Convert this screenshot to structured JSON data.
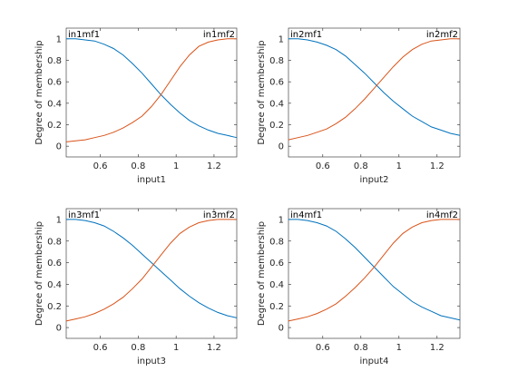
{
  "chart_data": [
    {
      "type": "line",
      "xlabel": "input1",
      "ylabel": "Degree of membership",
      "xlim": [
        0.42,
        1.32
      ],
      "ylim": [
        -0.1,
        1.1
      ],
      "xticks": [
        "0.6",
        "0.8",
        "1",
        "1.2"
      ],
      "yticks": [
        "0",
        "0.2",
        "0.4",
        "0.6",
        "0.8",
        "1"
      ],
      "grid": false,
      "series": [
        {
          "name": "in1mf1",
          "color": "#0072BD",
          "x": [
            0.42,
            0.47,
            0.52,
            0.57,
            0.62,
            0.67,
            0.72,
            0.77,
            0.82,
            0.87,
            0.92,
            0.97,
            1.02,
            1.07,
            1.12,
            1.17,
            1.22,
            1.27,
            1.32
          ],
          "y": [
            1.0,
            1.0,
            0.99,
            0.98,
            0.95,
            0.91,
            0.85,
            0.77,
            0.68,
            0.58,
            0.48,
            0.39,
            0.31,
            0.24,
            0.19,
            0.15,
            0.12,
            0.1,
            0.08
          ]
        },
        {
          "name": "in1mf2",
          "color": "#D95319",
          "x": [
            0.42,
            0.47,
            0.52,
            0.57,
            0.62,
            0.67,
            0.72,
            0.77,
            0.82,
            0.87,
            0.92,
            0.97,
            1.02,
            1.07,
            1.12,
            1.17,
            1.22,
            1.27,
            1.32
          ],
          "y": [
            0.04,
            0.05,
            0.06,
            0.08,
            0.1,
            0.13,
            0.17,
            0.22,
            0.28,
            0.37,
            0.48,
            0.61,
            0.74,
            0.85,
            0.93,
            0.97,
            0.99,
            1.0,
            1.0
          ]
        }
      ]
    },
    {
      "type": "line",
      "xlabel": "input2",
      "ylabel": "Degree of membership",
      "xlim": [
        0.42,
        1.32
      ],
      "ylim": [
        -0.1,
        1.1
      ],
      "xticks": [
        "0.6",
        "0.8",
        "1",
        "1.2"
      ],
      "yticks": [
        "0",
        "0.2",
        "0.4",
        "0.6",
        "0.8",
        "1"
      ],
      "grid": false,
      "series": [
        {
          "name": "in2mf1",
          "color": "#0072BD",
          "x": [
            0.42,
            0.47,
            0.52,
            0.57,
            0.62,
            0.67,
            0.72,
            0.77,
            0.82,
            0.87,
            0.92,
            0.97,
            1.02,
            1.07,
            1.12,
            1.17,
            1.22,
            1.27,
            1.32
          ],
          "y": [
            1.0,
            1.0,
            0.99,
            0.97,
            0.94,
            0.9,
            0.84,
            0.76,
            0.68,
            0.59,
            0.5,
            0.42,
            0.35,
            0.28,
            0.23,
            0.18,
            0.15,
            0.12,
            0.1
          ]
        },
        {
          "name": "in2mf2",
          "color": "#D95319",
          "x": [
            0.42,
            0.47,
            0.52,
            0.57,
            0.62,
            0.67,
            0.72,
            0.77,
            0.82,
            0.87,
            0.92,
            0.97,
            1.02,
            1.07,
            1.12,
            1.17,
            1.22,
            1.27,
            1.32
          ],
          "y": [
            0.06,
            0.08,
            0.1,
            0.13,
            0.16,
            0.21,
            0.27,
            0.35,
            0.44,
            0.54,
            0.64,
            0.74,
            0.83,
            0.9,
            0.95,
            0.98,
            0.99,
            1.0,
            1.0
          ]
        }
      ]
    },
    {
      "type": "line",
      "xlabel": "input3",
      "ylabel": "Degree of membership",
      "xlim": [
        0.42,
        1.32
      ],
      "ylim": [
        -0.1,
        1.1
      ],
      "xticks": [
        "0.6",
        "0.8",
        "1",
        "1.2"
      ],
      "yticks": [
        "0",
        "0.2",
        "0.4",
        "0.6",
        "0.8",
        "1"
      ],
      "grid": false,
      "series": [
        {
          "name": "in3mf1",
          "color": "#0072BD",
          "x": [
            0.42,
            0.47,
            0.52,
            0.57,
            0.62,
            0.67,
            0.72,
            0.77,
            0.82,
            0.87,
            0.92,
            0.97,
            1.02,
            1.07,
            1.12,
            1.17,
            1.22,
            1.27,
            1.32
          ],
          "y": [
            1.0,
            1.0,
            0.99,
            0.97,
            0.94,
            0.89,
            0.83,
            0.76,
            0.68,
            0.6,
            0.52,
            0.44,
            0.36,
            0.29,
            0.23,
            0.18,
            0.14,
            0.11,
            0.09
          ]
        },
        {
          "name": "in3mf2",
          "color": "#D95319",
          "x": [
            0.42,
            0.47,
            0.52,
            0.57,
            0.62,
            0.67,
            0.72,
            0.77,
            0.82,
            0.87,
            0.92,
            0.97,
            1.02,
            1.07,
            1.12,
            1.17,
            1.22,
            1.27,
            1.32
          ],
          "y": [
            0.06,
            0.08,
            0.1,
            0.13,
            0.17,
            0.22,
            0.28,
            0.36,
            0.45,
            0.56,
            0.67,
            0.78,
            0.87,
            0.93,
            0.97,
            0.99,
            1.0,
            1.0,
            1.0
          ]
        }
      ]
    },
    {
      "type": "line",
      "xlabel": "input4",
      "ylabel": "Degree of membership",
      "xlim": [
        0.42,
        1.32
      ],
      "ylim": [
        -0.1,
        1.1
      ],
      "xticks": [
        "0.6",
        "0.8",
        "1",
        "1.2"
      ],
      "yticks": [
        "0",
        "0.2",
        "0.4",
        "0.6",
        "0.8",
        "1"
      ],
      "grid": false,
      "series": [
        {
          "name": "in4mf1",
          "color": "#0072BD",
          "x": [
            0.42,
            0.47,
            0.52,
            0.57,
            0.62,
            0.67,
            0.72,
            0.77,
            0.82,
            0.87,
            0.92,
            0.97,
            1.02,
            1.07,
            1.12,
            1.17,
            1.22,
            1.27,
            1.32
          ],
          "y": [
            1.0,
            1.0,
            0.99,
            0.97,
            0.94,
            0.89,
            0.82,
            0.74,
            0.65,
            0.56,
            0.47,
            0.38,
            0.31,
            0.24,
            0.19,
            0.15,
            0.11,
            0.09,
            0.07
          ]
        },
        {
          "name": "in4mf2",
          "color": "#D95319",
          "x": [
            0.42,
            0.47,
            0.52,
            0.57,
            0.62,
            0.67,
            0.72,
            0.77,
            0.82,
            0.87,
            0.92,
            0.97,
            1.02,
            1.07,
            1.12,
            1.17,
            1.22,
            1.27,
            1.32
          ],
          "y": [
            0.06,
            0.08,
            0.1,
            0.13,
            0.17,
            0.22,
            0.29,
            0.37,
            0.46,
            0.56,
            0.67,
            0.78,
            0.87,
            0.93,
            0.97,
            0.99,
            1.0,
            1.0,
            1.0
          ]
        }
      ]
    }
  ]
}
